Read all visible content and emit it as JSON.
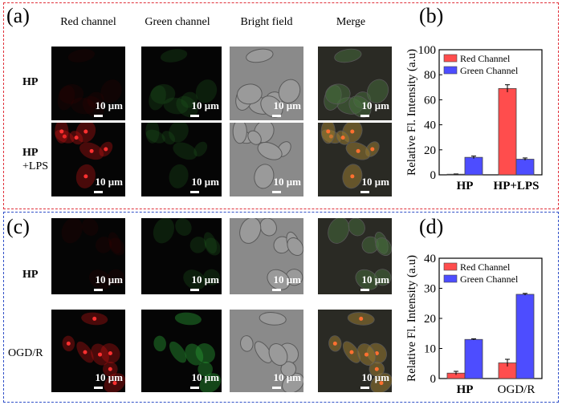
{
  "panels": {
    "a": "(a)",
    "b": "(b)",
    "c": "(c)",
    "d": "(d)"
  },
  "columns": [
    "Red channel",
    "Green channel",
    "Bright field",
    "Merge"
  ],
  "rows": {
    "a1": {
      "bold": "HP",
      "sub": ""
    },
    "a2": {
      "bold": "HP",
      "sub": "+LPS"
    },
    "c1": {
      "bold": "HP",
      "sub": ""
    },
    "c2": {
      "bold": "",
      "sub": "OGD/R"
    }
  },
  "scale_label": "10 μm",
  "colors": {
    "red_box": "#e0303a",
    "blue_box": "#3050c8",
    "red_bar": "#ff4d4d",
    "blue_bar": "#4d4dff"
  },
  "chart_data": [
    {
      "type": "bar",
      "panel": "b",
      "categories": [
        "HP",
        "HP+LPS"
      ],
      "series": [
        {
          "name": "Red Channel",
          "values": [
            0.5,
            69
          ],
          "errors": [
            0.2,
            3
          ]
        },
        {
          "name": "Green Channel",
          "values": [
            14,
            12.5
          ],
          "errors": [
            1,
            1
          ]
        }
      ],
      "ylabel": "Relative Fl. Intensity (a.u)",
      "ylim": [
        0,
        100
      ],
      "yticks": [
        0,
        20,
        40,
        60,
        80,
        100
      ],
      "legend": "top-left"
    },
    {
      "type": "bar",
      "panel": "d",
      "categories": [
        "HP",
        "OGD/R"
      ],
      "series": [
        {
          "name": "Red Channel",
          "values": [
            1.8,
            5.2
          ],
          "errors": [
            0.6,
            1.2
          ]
        },
        {
          "name": "Green Channel",
          "values": [
            13,
            28
          ],
          "errors": [
            0.2,
            0.3
          ]
        }
      ],
      "ylabel": "Relative Fl. Intensity (a.u)",
      "ylim": [
        0,
        40
      ],
      "yticks": [
        0,
        10,
        20,
        30,
        40
      ],
      "legend": "top-left"
    }
  ]
}
